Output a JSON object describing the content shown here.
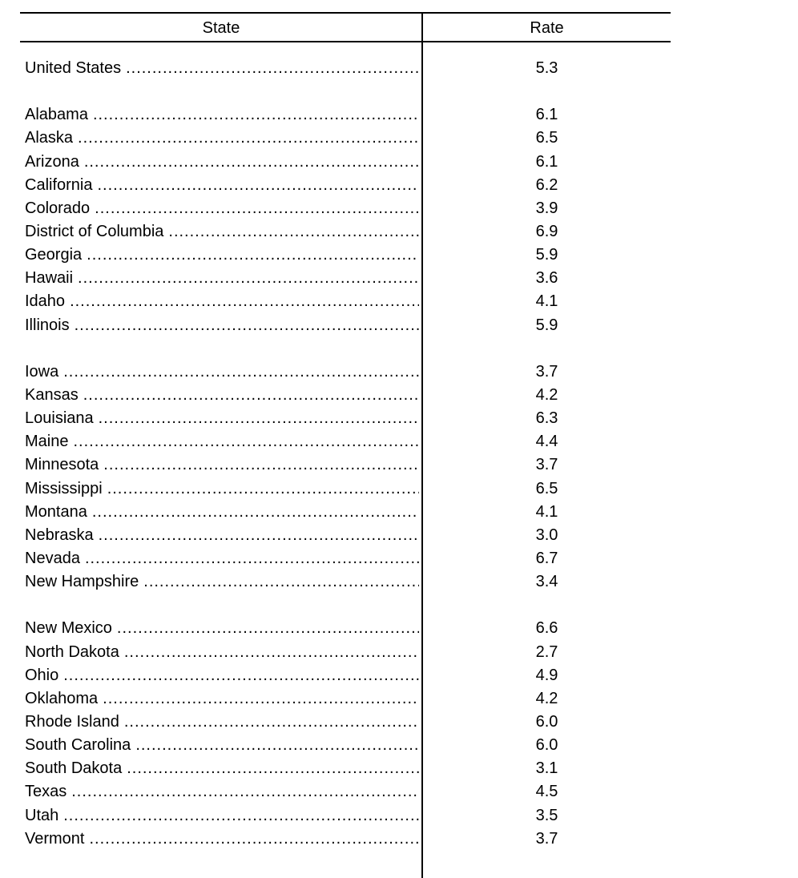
{
  "table": {
    "headers": {
      "state": "State",
      "rate": "Rate"
    },
    "groups": [
      {
        "rows": [
          {
            "state": "United States",
            "rate": "5.3"
          }
        ]
      },
      {
        "rows": [
          {
            "state": "Alabama",
            "rate": "6.1"
          },
          {
            "state": "Alaska",
            "rate": "6.5"
          },
          {
            "state": "Arizona",
            "rate": "6.1"
          },
          {
            "state": "California",
            "rate": "6.2"
          },
          {
            "state": "Colorado",
            "rate": "3.9"
          },
          {
            "state": "District of Columbia",
            "rate": "6.9"
          },
          {
            "state": "Georgia",
            "rate": "5.9"
          },
          {
            "state": "Hawaii",
            "rate": "3.6"
          },
          {
            "state": "Idaho",
            "rate": "4.1"
          },
          {
            "state": "Illinois",
            "rate": "5.9"
          }
        ]
      },
      {
        "rows": [
          {
            "state": "Iowa",
            "rate": "3.7"
          },
          {
            "state": "Kansas",
            "rate": "4.2"
          },
          {
            "state": "Louisiana",
            "rate": "6.3"
          },
          {
            "state": "Maine",
            "rate": "4.4"
          },
          {
            "state": "Minnesota",
            "rate": "3.7"
          },
          {
            "state": "Mississippi",
            "rate": "6.5"
          },
          {
            "state": "Montana",
            "rate": "4.1"
          },
          {
            "state": "Nebraska",
            "rate": "3.0"
          },
          {
            "state": "Nevada",
            "rate": "6.7"
          },
          {
            "state": "New Hampshire",
            "rate": "3.4"
          }
        ]
      },
      {
        "rows": [
          {
            "state": "New Mexico",
            "rate": "6.6"
          },
          {
            "state": "North Dakota",
            "rate": "2.7"
          },
          {
            "state": "Ohio",
            "rate": "4.9"
          },
          {
            "state": "Oklahoma",
            "rate": "4.2"
          },
          {
            "state": "Rhode Island",
            "rate": "6.0"
          },
          {
            "state": "South Carolina",
            "rate": "6.0"
          },
          {
            "state": "South Dakota",
            "rate": "3.1"
          },
          {
            "state": "Texas",
            "rate": "4.5"
          },
          {
            "state": "Utah",
            "rate": "3.5"
          },
          {
            "state": "Vermont",
            "rate": "3.7"
          }
        ]
      }
    ]
  }
}
